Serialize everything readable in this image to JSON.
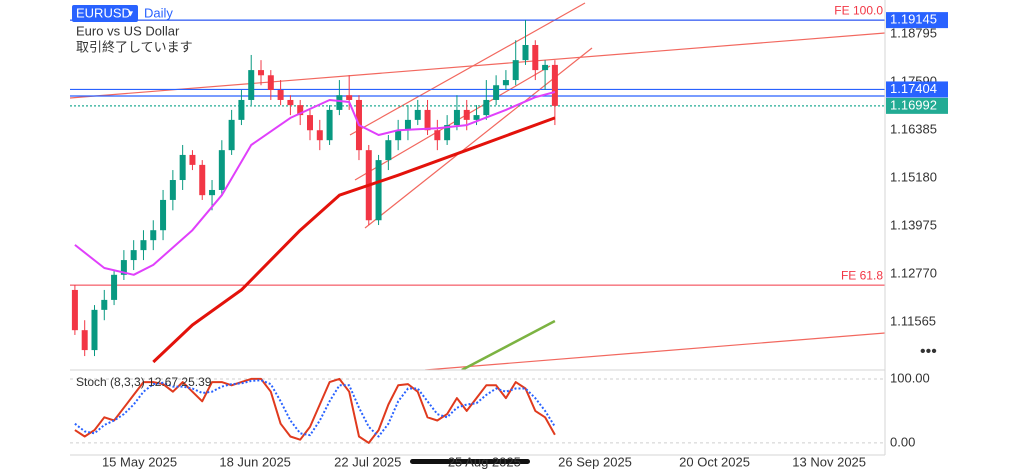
{
  "chart_data": {
    "type": "candlestick",
    "symbol": "EURUSD",
    "timeframe": "Daily",
    "description": "Euro vs US Dollar",
    "status": "取引終了しています",
    "up_color": "#089981",
    "down_color": "#f23645",
    "xlim": [
      -0.5,
      82.7
    ],
    "xticks": [
      {
        "value": 6.6,
        "label": "15 May 2025"
      },
      {
        "value": 18.4,
        "label": "18 Jun 2025"
      },
      {
        "value": 29.9,
        "label": "22 Jul 2025"
      },
      {
        "value": 41.8,
        "label": "25 Aug 2025"
      },
      {
        "value": 53.1,
        "label": "26 Sep 2025"
      },
      {
        "value": 65.3,
        "label": "20 Oct 2025"
      },
      {
        "value": 77.0,
        "label": "13 Nov 2025"
      }
    ],
    "ylim": [
      1.1036,
      1.1965
    ],
    "yticks": [
      1.18795,
      {
        "value": 1.1759,
        "label": "1.17590"
      },
      1.16385,
      {
        "value": 1.1518,
        "label": "1.15180"
      },
      1.13975,
      {
        "value": 1.1277,
        "label": "1.12770"
      },
      1.11565
    ],
    "ohlc": [
      [
        1.1237,
        1.1249,
        1.1124,
        1.1136
      ],
      [
        1.1136,
        1.1161,
        1.1071,
        1.1086
      ],
      [
        1.1086,
        1.1199,
        1.1071,
        1.1187
      ],
      [
        1.1187,
        1.1237,
        1.1161,
        1.1212
      ],
      [
        1.1212,
        1.1287,
        1.1199,
        1.1275
      ],
      [
        1.1275,
        1.1337,
        1.1262,
        1.1312
      ],
      [
        1.1312,
        1.1362,
        1.1287,
        1.1337
      ],
      [
        1.1337,
        1.1387,
        1.1312,
        1.1362
      ],
      [
        1.1362,
        1.1412,
        1.1337,
        1.1387
      ],
      [
        1.1387,
        1.1488,
        1.1362,
        1.1463
      ],
      [
        1.1463,
        1.1538,
        1.1437,
        1.1513
      ],
      [
        1.1513,
        1.1601,
        1.1488,
        1.1576
      ],
      [
        1.1576,
        1.1588,
        1.1538,
        1.1551
      ],
      [
        1.1551,
        1.1563,
        1.1463,
        1.1475
      ],
      [
        1.1475,
        1.1513,
        1.1437,
        1.1488
      ],
      [
        1.1488,
        1.1613,
        1.1475,
        1.1588
      ],
      [
        1.1588,
        1.1689,
        1.1576,
        1.1664
      ],
      [
        1.1664,
        1.1739,
        1.1651,
        1.1714
      ],
      [
        1.1714,
        1.1827,
        1.1701,
        1.1789
      ],
      [
        1.1789,
        1.1814,
        1.1751,
        1.1776
      ],
      [
        1.1776,
        1.1789,
        1.1714,
        1.1739
      ],
      [
        1.1739,
        1.1764,
        1.1701,
        1.1714
      ],
      [
        1.1714,
        1.1726,
        1.1676,
        1.1701
      ],
      [
        1.1701,
        1.1714,
        1.1651,
        1.1676
      ],
      [
        1.1676,
        1.1689,
        1.1613,
        1.1638
      ],
      [
        1.1638,
        1.1664,
        1.1588,
        1.1613
      ],
      [
        1.1613,
        1.1701,
        1.1601,
        1.1689
      ],
      [
        1.1689,
        1.1764,
        1.1676,
        1.1726
      ],
      [
        1.1726,
        1.1776,
        1.1689,
        1.1714
      ],
      [
        1.1714,
        1.1726,
        1.1563,
        1.1588
      ],
      [
        1.1588,
        1.1601,
        1.14,
        1.1412
      ],
      [
        1.1412,
        1.1576,
        1.14,
        1.1563
      ],
      [
        1.1563,
        1.1626,
        1.1538,
        1.1613
      ],
      [
        1.1613,
        1.1664,
        1.1588,
        1.1638
      ],
      [
        1.1638,
        1.1701,
        1.1613,
        1.1664
      ],
      [
        1.1664,
        1.1714,
        1.1651,
        1.1689
      ],
      [
        1.1689,
        1.1714,
        1.1626,
        1.1638
      ],
      [
        1.1638,
        1.1664,
        1.1588,
        1.1613
      ],
      [
        1.1613,
        1.1676,
        1.1601,
        1.1651
      ],
      [
        1.1651,
        1.1726,
        1.1638,
        1.1689
      ],
      [
        1.1689,
        1.1714,
        1.1638,
        1.1664
      ],
      [
        1.1664,
        1.1701,
        1.1651,
        1.1676
      ],
      [
        1.1676,
        1.1764,
        1.1664,
        1.1714
      ],
      [
        1.1714,
        1.1776,
        1.1701,
        1.1751
      ],
      [
        1.1751,
        1.1789,
        1.1739,
        1.1764
      ],
      [
        1.1764,
        1.1864,
        1.1751,
        1.1814
      ],
      [
        1.1814,
        1.1915,
        1.1802,
        1.1852
      ],
      [
        1.1852,
        1.1864,
        1.1764,
        1.1789
      ],
      [
        1.1789,
        1.1814,
        1.1739,
        1.1802
      ],
      [
        1.1802,
        1.1814,
        1.1651,
        1.16992
      ]
    ],
    "lines": [
      {
        "color": "#e040fb",
        "width": 2,
        "x": [
          0,
          3,
          6,
          8,
          12,
          15,
          18,
          22,
          26,
          28,
          29,
          31,
          33,
          37,
          40,
          44,
          47,
          49
        ],
        "values": [
          1.135,
          1.1292,
          1.1275,
          1.13,
          1.1387,
          1.1475,
          1.1601,
          1.1669,
          1.1714,
          1.1709,
          1.1651,
          1.1626,
          1.1638,
          1.1643,
          1.1651,
          1.1689,
          1.1721,
          1.1734
        ]
      },
      {
        "color": "#e3120b",
        "width": 3,
        "x": [
          8,
          12,
          17,
          23,
          27,
          33,
          40,
          45,
          49
        ],
        "values": [
          1.1056,
          1.1149,
          1.1237,
          1.1387,
          1.1475,
          1.1525,
          1.1588,
          1.1633,
          1.1669
        ]
      },
      {
        "color": "#7cb342",
        "width": 2.5,
        "x": [
          39.5,
          49
        ],
        "values": [
          1.1036,
          1.1159
        ]
      }
    ],
    "hlines": [
      {
        "value": 1.19145,
        "label": "1.19145",
        "color": "#2962ff",
        "style": "solid"
      },
      {
        "value": 1.1724,
        "color": "#2962ff",
        "style": "solid"
      },
      {
        "value": 1.17404,
        "label": "1.17404",
        "color": "#2962ff",
        "style": "solid"
      },
      {
        "value": 1.16992,
        "label": "1.16992",
        "color": "#22ab94",
        "style": "dotted"
      }
    ],
    "fe_levels": [
      {
        "value": 1.19145,
        "label": "FE 100.0",
        "color": "#f23645"
      },
      {
        "value": 1.1249,
        "label": "FE 61.8",
        "color": "#f23645"
      }
    ],
    "oscillator": {
      "title": "Stoch (8,3,3) 12.67 25.39",
      "ylim": [
        -19,
        114
      ],
      "yticks": [
        {
          "value": 100,
          "label": "100.00"
        },
        {
          "value": 0,
          "label": "0.00"
        }
      ],
      "series": [
        {
          "color": "#e03a1e",
          "style": "solid",
          "values": [
            20,
            10,
            20,
            40,
            35,
            55,
            75,
            95,
            95,
            92,
            80,
            95,
            80,
            65,
            95,
            95,
            90,
            95,
            100,
            100,
            80,
            30,
            10,
            5,
            25,
            60,
            95,
            100,
            80,
            10,
            0,
            20,
            60,
            90,
            92,
            80,
            40,
            35,
            45,
            70,
            50,
            70,
            90,
            90,
            70,
            95,
            85,
            50,
            40,
            12.67
          ]
        },
        {
          "color": "#2962ff",
          "style": "dotted",
          "values": [
            30,
            18,
            15,
            28,
            35,
            45,
            60,
            80,
            92,
            94,
            88,
            88,
            85,
            78,
            80,
            88,
            92,
            93,
            97,
            98,
            92,
            65,
            35,
            15,
            12,
            35,
            65,
            90,
            90,
            55,
            25,
            10,
            30,
            65,
            85,
            85,
            65,
            45,
            40,
            55,
            60,
            62,
            75,
            85,
            80,
            85,
            85,
            70,
            50,
            25.39
          ]
        }
      ]
    }
  }
}
